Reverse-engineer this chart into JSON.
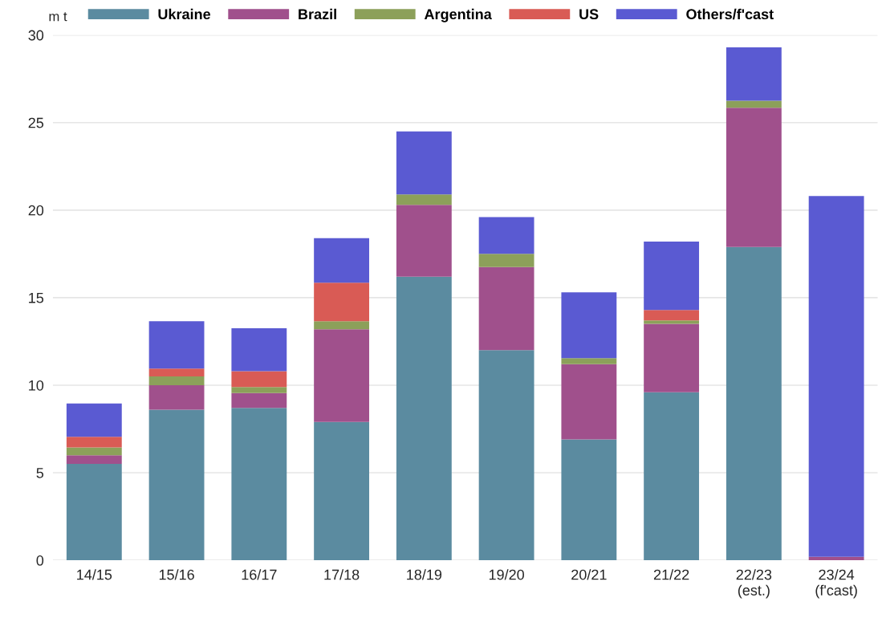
{
  "chart_data": {
    "type": "bar",
    "stacked": true,
    "ylabel": "m t",
    "categories": [
      "14/15",
      "15/16",
      "16/17",
      "17/18",
      "18/19",
      "19/20",
      "20/21",
      "21/22",
      "22/23\n(est.)",
      "23/24\n(f'cast)"
    ],
    "series": [
      {
        "name": "Ukraine",
        "color": "#5b8ba0",
        "values": [
          5.5,
          8.6,
          8.7,
          7.9,
          16.2,
          12.0,
          6.9,
          9.6,
          17.9,
          0
        ]
      },
      {
        "name": "Brazil",
        "color": "#a0508c",
        "values": [
          0.5,
          1.4,
          0.85,
          5.3,
          4.1,
          4.75,
          4.3,
          3.9,
          7.95,
          0.2
        ]
      },
      {
        "name": "Argentina",
        "color": "#8ca05a",
        "values": [
          0.45,
          0.5,
          0.35,
          0.45,
          0.6,
          0.75,
          0.35,
          0.2,
          0.4,
          0
        ]
      },
      {
        "name": "US",
        "color": "#d95b55",
        "values": [
          0.6,
          0.45,
          0.9,
          2.2,
          0,
          0,
          0,
          0.6,
          0,
          0
        ]
      },
      {
        "name": "Others/f'cast",
        "color": "#5a5ad2",
        "values": [
          1.9,
          2.7,
          2.45,
          2.55,
          3.6,
          2.1,
          3.75,
          3.9,
          3.05,
          20.6
        ]
      }
    ],
    "ylim": [
      0,
      30
    ],
    "yticks": [
      0,
      5,
      10,
      15,
      20,
      25,
      30
    ],
    "grid": "y",
    "legend": "top"
  }
}
